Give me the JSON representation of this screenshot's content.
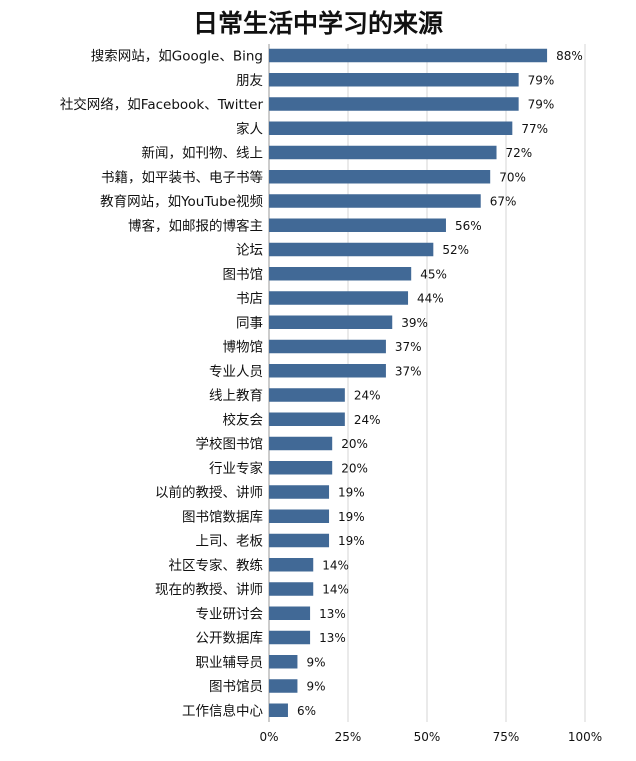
{
  "chart_data": {
    "type": "bar",
    "orientation": "horizontal",
    "title": "日常生活中学习的来源",
    "categories": [
      "搜索网站，如Google、Bing",
      "朋友",
      "社交网络，如Facebook、Twitter",
      "家人",
      "新闻，如刊物、线上",
      "书籍，如平装书、电子书等",
      "教育网站，如YouTube视频",
      "博客，如邮报的博客主",
      "论坛",
      "图书馆",
      "书店",
      "同事",
      "博物馆",
      "专业人员",
      "线上教育",
      "校友会",
      "学校图书馆",
      "行业专家",
      "以前的教授、讲师",
      "图书馆数据库",
      "上司、老板",
      "社区专家、教练",
      "现在的教授、讲师",
      "专业研讨会",
      "公开数据库",
      "职业辅导员",
      "图书馆员",
      "工作信息中心"
    ],
    "values": [
      88,
      79,
      79,
      77,
      72,
      70,
      67,
      56,
      52,
      45,
      44,
      39,
      37,
      37,
      24,
      24,
      20,
      20,
      19,
      19,
      19,
      14,
      14,
      13,
      13,
      9,
      9,
      6
    ],
    "value_labels": [
      "88%",
      "79%",
      "79%",
      "77%",
      "72%",
      "70%",
      "67%",
      "56%",
      "52%",
      "45%",
      "44%",
      "39%",
      "37%",
      "37%",
      "24%",
      "24%",
      "20%",
      "20%",
      "19%",
      "19%",
      "19%",
      "14%",
      "14%",
      "13%",
      "13%",
      "9%",
      "9%",
      "6%"
    ],
    "xlim": [
      0,
      100
    ],
    "xticks": [
      0,
      25,
      50,
      75,
      100
    ],
    "xtick_labels": [
      "0%",
      "25%",
      "50%",
      "75%",
      "100%"
    ],
    "grid": true,
    "legend": "none",
    "bar_color": "#416996"
  }
}
